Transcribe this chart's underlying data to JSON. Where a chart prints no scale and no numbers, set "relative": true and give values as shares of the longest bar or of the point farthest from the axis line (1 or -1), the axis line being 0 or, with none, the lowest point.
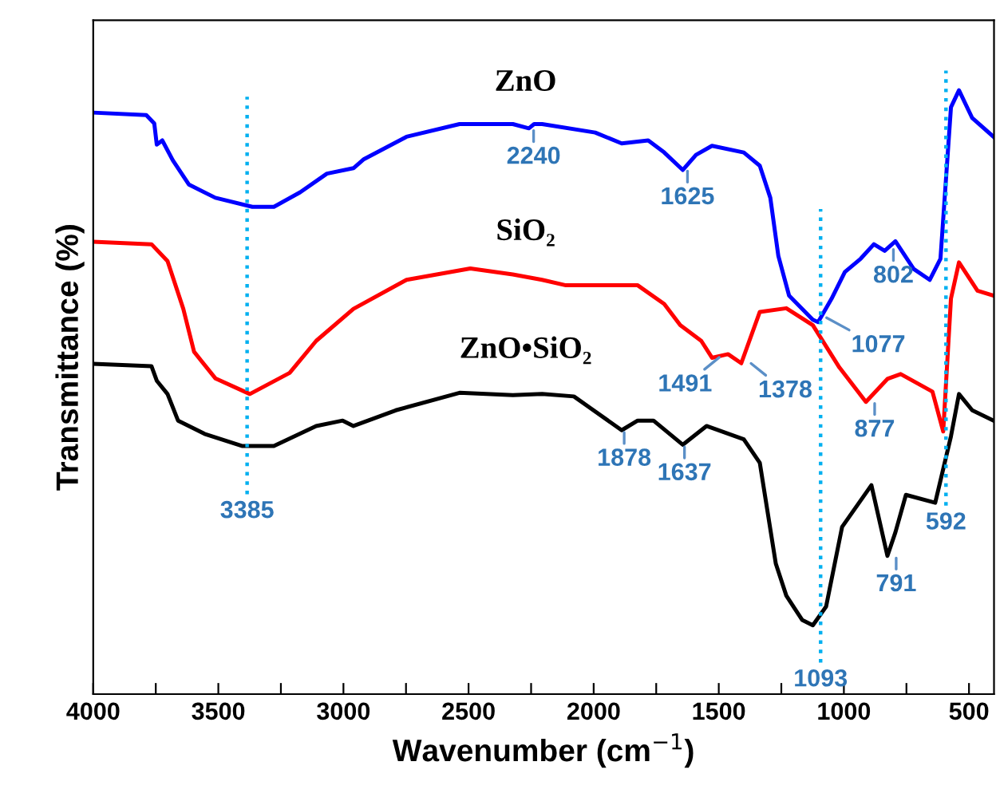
{
  "chart_data": {
    "type": "line",
    "relative": true,
    "xlabel": "Wavenumber (cm$^{−1}$)",
    "ylabel": "Transmittance (%)",
    "xlim": [
      4000,
      400
    ],
    "xticks": [
      4000,
      {
        "value": 3750,
        "label": null
      },
      3500,
      {
        "value": 3250,
        "label": null
      },
      3000,
      {
        "value": 2750,
        "label": null
      },
      2500,
      {
        "value": 2250,
        "label": null
      },
      2000,
      {
        "value": 1750,
        "label": null
      },
      1500,
      {
        "value": 1250,
        "label": null
      },
      1000,
      {
        "value": 750,
        "label": null
      },
      500
    ],
    "grid": false,
    "legend": false,
    "marker": "none",
    "line_style": "solid",
    "series": [
      {
        "name": "ZnO",
        "color": "#0000ff",
        "x": [
          4000,
          3788,
          3756,
          3746,
          3724,
          3682,
          3618,
          3512,
          3364,
          3278,
          3173,
          3066,
          2960,
          2918,
          2748,
          2536,
          2323,
          2259,
          2238,
          2206,
          1994,
          1888,
          1782,
          1718,
          1644,
          1591,
          1527,
          1400,
          1336,
          1294,
          1262,
          1219,
          1124,
          1103,
          1049,
          996,
          933,
          880,
          837,
          794,
          721,
          657,
          614,
          572,
          540,
          487,
          402
        ],
        "values": [
          0.963,
          0.959,
          0.945,
          0.91,
          0.917,
          0.884,
          0.844,
          0.822,
          0.807,
          0.807,
          0.831,
          0.862,
          0.871,
          0.886,
          0.923,
          0.944,
          0.944,
          0.937,
          0.944,
          0.944,
          0.93,
          0.912,
          0.917,
          0.897,
          0.868,
          0.893,
          0.908,
          0.897,
          0.875,
          0.822,
          0.726,
          0.66,
          0.62,
          0.616,
          0.655,
          0.699,
          0.721,
          0.745,
          0.734,
          0.75,
          0.704,
          0.686,
          0.721,
          0.972,
          1.0,
          0.954,
          0.923
        ]
      },
      {
        "name": "SiO₂",
        "color": "#ff0000",
        "x": [
          4000,
          3767,
          3703,
          3640,
          3597,
          3512,
          3374,
          3215,
          3109,
          2960,
          2748,
          2493,
          2323,
          2206,
          2111,
          1824,
          1718,
          1654,
          1570,
          1527,
          1463,
          1410,
          1336,
          1230,
          1124,
          1018,
          912,
          826,
          773,
          646,
          603,
          572,
          540,
          466,
          402
        ],
        "values": [
          0.749,
          0.745,
          0.717,
          0.638,
          0.567,
          0.523,
          0.497,
          0.532,
          0.585,
          0.638,
          0.686,
          0.705,
          0.695,
          0.686,
          0.677,
          0.677,
          0.646,
          0.611,
          0.585,
          0.557,
          0.563,
          0.548,
          0.633,
          0.639,
          0.611,
          0.541,
          0.484,
          0.522,
          0.53,
          0.501,
          0.435,
          0.655,
          0.715,
          0.668,
          0.66
        ]
      },
      {
        "name": "ZnO•SiO₂",
        "color": "#000000",
        "x": [
          4000,
          3767,
          3746,
          3703,
          3661,
          3555,
          3406,
          3278,
          3109,
          3003,
          2960,
          2791,
          2536,
          2323,
          2206,
          2079,
          1888,
          1824,
          1761,
          1644,
          1549,
          1400,
          1336,
          1272,
          1230,
          1167,
          1124,
          1071,
          1007,
          890,
          826,
          794,
          752,
          635,
          572,
          540,
          487,
          402
        ],
        "values": [
          0.547,
          0.543,
          0.519,
          0.497,
          0.453,
          0.431,
          0.411,
          0.411,
          0.444,
          0.453,
          0.444,
          0.47,
          0.499,
          0.495,
          0.497,
          0.493,
          0.437,
          0.453,
          0.453,
          0.413,
          0.444,
          0.422,
          0.383,
          0.216,
          0.163,
          0.123,
          0.114,
          0.145,
          0.277,
          0.346,
          0.229,
          0.268,
          0.33,
          0.317,
          0.427,
          0.497,
          0.47,
          0.453
        ]
      }
    ],
    "ref_lines": [
      {
        "axis": "x",
        "value": 3385,
        "label": "3385",
        "color": "#00b0f0",
        "line_style": "dotted"
      },
      {
        "axis": "x",
        "value": 1093,
        "label": "1093",
        "color": "#00b0f0",
        "line_style": "dotted"
      },
      {
        "axis": "x",
        "value": 592,
        "label": "592",
        "color": "#00b0f0",
        "line_style": "dotted"
      }
    ],
    "annotations": [
      {
        "text": "2240",
        "x": 2240,
        "y": 0.937
      },
      {
        "text": "1625",
        "x": 1625,
        "y": 0.87
      },
      {
        "text": "802",
        "x": 802,
        "y": 0.74
      },
      {
        "text": "1077",
        "x": 1077,
        "y": 0.625
      },
      {
        "text": "1491",
        "x": 1491,
        "y": 0.56
      },
      {
        "text": "1378",
        "x": 1378,
        "y": 0.55
      },
      {
        "text": "877",
        "x": 877,
        "y": 0.485
      },
      {
        "text": "1878",
        "x": 1878,
        "y": 0.437
      },
      {
        "text": "1637",
        "x": 1637,
        "y": 0.413
      },
      {
        "text": "791",
        "x": 791,
        "y": 0.229
      }
    ]
  }
}
